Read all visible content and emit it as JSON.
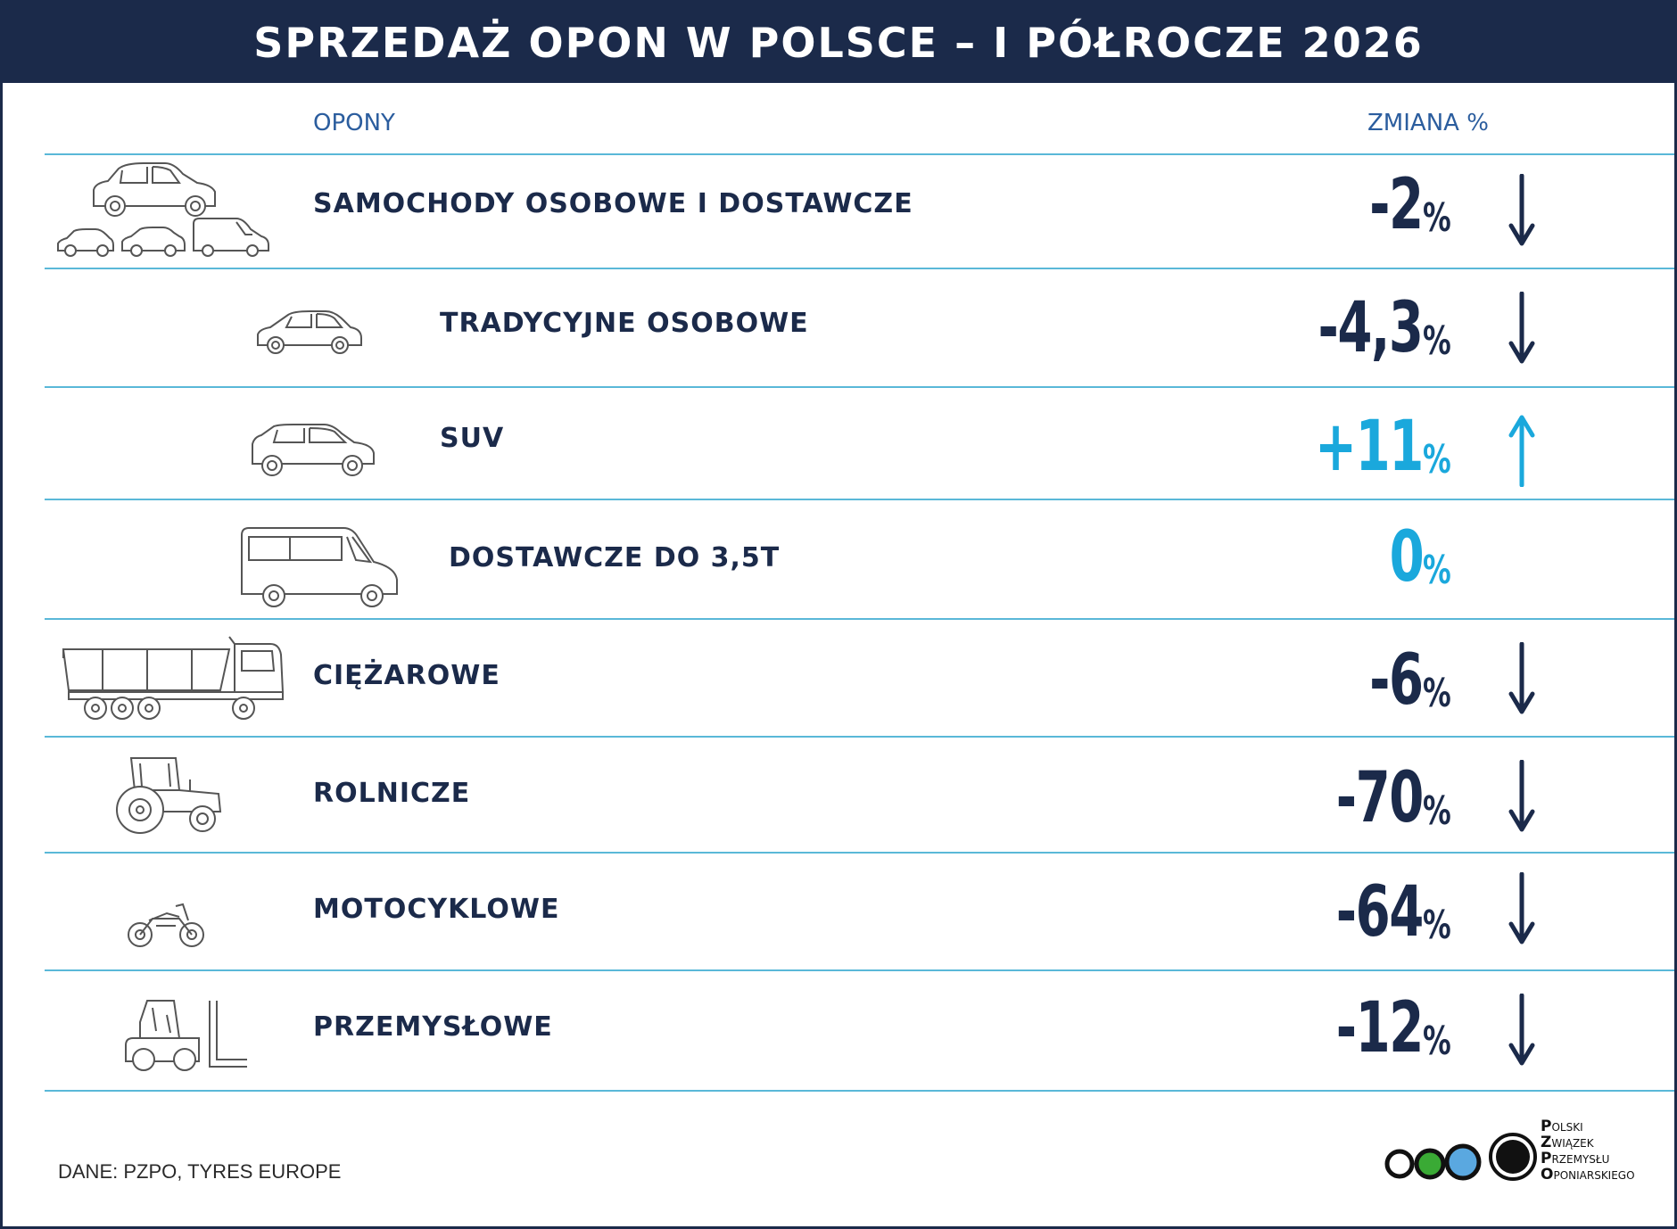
{
  "header": {
    "title": "SPRZEDAŻ OPON W POLSCE – I PÓŁROCZE 2026"
  },
  "columns": {
    "left": "OPONY",
    "right": "ZMIANA %"
  },
  "chart_data": {
    "type": "table",
    "title": "SPRZEDAŻ OPON W POLSCE – I PÓŁROCZE 2026",
    "columns": [
      "OPONY",
      "ZMIANA %"
    ],
    "rows": [
      {
        "label": "SAMOCHODY OSOBOWE I DOSTAWCZE",
        "value": -2,
        "display": "-2",
        "unit": "%",
        "trend": "down",
        "color": "#1b2a4a",
        "icon": "cars-group-icon"
      },
      {
        "label": "TRADYCYJNE OSOBOWE",
        "value": -4.3,
        "display": "-4,3",
        "unit": "%",
        "trend": "down",
        "color": "#1b2a4a",
        "icon": "passenger-car-icon"
      },
      {
        "label": "SUV",
        "value": 11,
        "display": "+11",
        "unit": "%",
        "trend": "up",
        "color": "#1aa8dc",
        "icon": "suv-icon"
      },
      {
        "label": "DOSTAWCZE DO 3,5T",
        "value": 0,
        "display": "0",
        "unit": "%",
        "trend": "none",
        "color": "#1aa8dc",
        "icon": "van-icon"
      },
      {
        "label": "CIĘŻAROWE",
        "value": -6,
        "display": "-6",
        "unit": "%",
        "trend": "down",
        "color": "#1b2a4a",
        "icon": "truck-icon"
      },
      {
        "label": "ROLNICZE",
        "value": -70,
        "display": "-70",
        "unit": "%",
        "trend": "down",
        "color": "#1b2a4a",
        "icon": "tractor-icon"
      },
      {
        "label": "MOTOCYKLOWE",
        "value": -64,
        "display": "-64",
        "unit": "%",
        "trend": "down",
        "color": "#1b2a4a",
        "icon": "motorcycle-icon"
      },
      {
        "label": "PRZEMYSŁOWE",
        "value": -12,
        "display": "-12",
        "unit": "%",
        "trend": "down",
        "color": "#1b2a4a",
        "icon": "forklift-icon"
      }
    ]
  },
  "footer": {
    "source": "DANE: PZPO, TYRES EUROPE",
    "logo": {
      "lines": [
        {
          "cap": "P",
          "rest": "OLSKI"
        },
        {
          "cap": "Z",
          "rest": "WIĄZEK"
        },
        {
          "cap": "P",
          "rest": "RZEMYSŁU"
        },
        {
          "cap": "O",
          "rest": "PONIARSKIEGO"
        }
      ],
      "circle_colors": [
        "#ffffff",
        "#3aaa35",
        "#5aa8e0",
        "#111111"
      ]
    }
  }
}
